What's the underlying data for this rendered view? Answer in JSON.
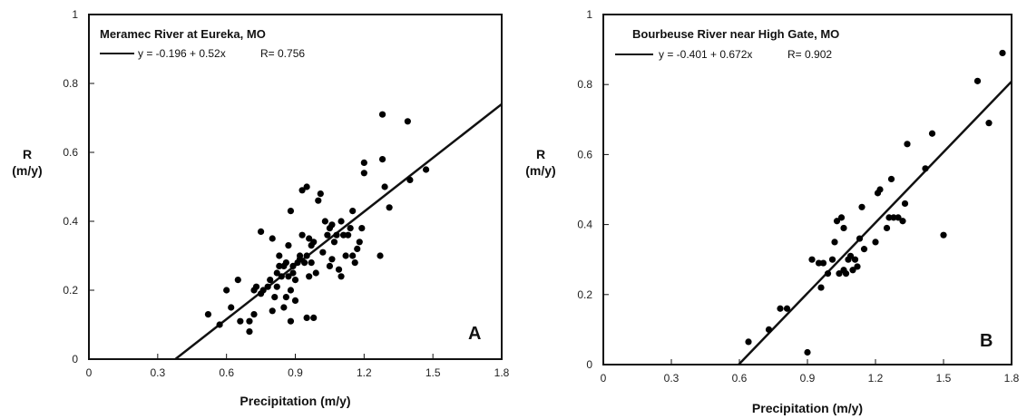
{
  "chart_data": [
    {
      "type": "scatter",
      "title": "Meramec River at Eureka, MO",
      "equation": "y = -0.196 + 0.52x",
      "r_text": "R= 0.756",
      "panel_letter": "A",
      "xlabel": "Precipitation (m/y)",
      "ylabel_line1": "R",
      "ylabel_line2": "(m/y)",
      "xlim": [
        0,
        1.8
      ],
      "ylim": [
        0,
        1
      ],
      "xticks": [
        "0",
        "0.3",
        "0.6",
        "0.9",
        "1.2",
        "1.5",
        "1.8"
      ],
      "yticks": [
        "0",
        "0.2",
        "0.4",
        "0.6",
        "0.8",
        "1"
      ],
      "fit": {
        "intercept": -0.196,
        "slope": 0.52
      },
      "points": [
        [
          0.52,
          0.13
        ],
        [
          0.57,
          0.1
        ],
        [
          0.6,
          0.2
        ],
        [
          0.62,
          0.15
        ],
        [
          0.65,
          0.23
        ],
        [
          0.66,
          0.11
        ],
        [
          0.7,
          0.08
        ],
        [
          0.7,
          0.11
        ],
        [
          0.72,
          0.13
        ],
        [
          0.72,
          0.2
        ],
        [
          0.73,
          0.21
        ],
        [
          0.75,
          0.19
        ],
        [
          0.75,
          0.37
        ],
        [
          0.76,
          0.2
        ],
        [
          0.78,
          0.21
        ],
        [
          0.79,
          0.23
        ],
        [
          0.8,
          0.35
        ],
        [
          0.8,
          0.14
        ],
        [
          0.81,
          0.18
        ],
        [
          0.82,
          0.25
        ],
        [
          0.82,
          0.21
        ],
        [
          0.83,
          0.27
        ],
        [
          0.83,
          0.3
        ],
        [
          0.84,
          0.24
        ],
        [
          0.85,
          0.15
        ],
        [
          0.85,
          0.27
        ],
        [
          0.86,
          0.28
        ],
        [
          0.86,
          0.18
        ],
        [
          0.87,
          0.33
        ],
        [
          0.87,
          0.24
        ],
        [
          0.88,
          0.11
        ],
        [
          0.88,
          0.2
        ],
        [
          0.88,
          0.43
        ],
        [
          0.89,
          0.27
        ],
        [
          0.89,
          0.25
        ],
        [
          0.9,
          0.17
        ],
        [
          0.9,
          0.23
        ],
        [
          0.91,
          0.28
        ],
        [
          0.92,
          0.29
        ],
        [
          0.92,
          0.3
        ],
        [
          0.93,
          0.49
        ],
        [
          0.93,
          0.36
        ],
        [
          0.94,
          0.28
        ],
        [
          0.95,
          0.12
        ],
        [
          0.95,
          0.3
        ],
        [
          0.95,
          0.5
        ],
        [
          0.96,
          0.35
        ],
        [
          0.96,
          0.24
        ],
        [
          0.97,
          0.28
        ],
        [
          0.97,
          0.33
        ],
        [
          0.98,
          0.12
        ],
        [
          0.98,
          0.34
        ],
        [
          0.99,
          0.25
        ],
        [
          1.0,
          0.46
        ],
        [
          1.01,
          0.48
        ],
        [
          1.02,
          0.31
        ],
        [
          1.03,
          0.4
        ],
        [
          1.04,
          0.36
        ],
        [
          1.05,
          0.27
        ],
        [
          1.05,
          0.38
        ],
        [
          1.06,
          0.39
        ],
        [
          1.06,
          0.29
        ],
        [
          1.07,
          0.34
        ],
        [
          1.08,
          0.36
        ],
        [
          1.09,
          0.26
        ],
        [
          1.1,
          0.24
        ],
        [
          1.1,
          0.4
        ],
        [
          1.11,
          0.36
        ],
        [
          1.12,
          0.3
        ],
        [
          1.13,
          0.36
        ],
        [
          1.14,
          0.38
        ],
        [
          1.15,
          0.3
        ],
        [
          1.15,
          0.43
        ],
        [
          1.16,
          0.28
        ],
        [
          1.17,
          0.32
        ],
        [
          1.18,
          0.34
        ],
        [
          1.19,
          0.38
        ],
        [
          1.2,
          0.57
        ],
        [
          1.2,
          0.54
        ],
        [
          1.27,
          0.3
        ],
        [
          1.28,
          0.71
        ],
        [
          1.28,
          0.58
        ],
        [
          1.29,
          0.5
        ],
        [
          1.31,
          0.44
        ],
        [
          1.39,
          0.69
        ],
        [
          1.4,
          0.52
        ],
        [
          1.47,
          0.55
        ]
      ]
    },
    {
      "type": "scatter",
      "title": "Bourbeuse River near High Gate, MO",
      "equation": "y = -0.401 + 0.672x",
      "r_text": "R= 0.902",
      "panel_letter": "B",
      "xlabel": "Precipitation (m/y)",
      "ylabel_line1": "R",
      "ylabel_line2": "(m/y)",
      "xlim": [
        0,
        1.8
      ],
      "ylim": [
        0,
        1
      ],
      "xticks": [
        "0",
        "0.3",
        "0.6",
        "0.9",
        "1.2",
        "1.5",
        "1.8"
      ],
      "yticks": [
        "0",
        "0.2",
        "0.4",
        "0.6",
        "0.8",
        "1"
      ],
      "fit": {
        "intercept": -0.401,
        "slope": 0.672
      },
      "points": [
        [
          0.64,
          0.065
        ],
        [
          0.73,
          0.1
        ],
        [
          0.78,
          0.16
        ],
        [
          0.81,
          0.16
        ],
        [
          0.9,
          0.035
        ],
        [
          0.92,
          0.3
        ],
        [
          0.95,
          0.29
        ],
        [
          0.96,
          0.22
        ],
        [
          0.97,
          0.29
        ],
        [
          0.99,
          0.26
        ],
        [
          1.01,
          0.3
        ],
        [
          1.02,
          0.35
        ],
        [
          1.03,
          0.41
        ],
        [
          1.04,
          0.26
        ],
        [
          1.05,
          0.42
        ],
        [
          1.06,
          0.27
        ],
        [
          1.06,
          0.39
        ],
        [
          1.07,
          0.26
        ],
        [
          1.08,
          0.3
        ],
        [
          1.09,
          0.31
        ],
        [
          1.1,
          0.27
        ],
        [
          1.11,
          0.3
        ],
        [
          1.12,
          0.28
        ],
        [
          1.13,
          0.36
        ],
        [
          1.14,
          0.45
        ],
        [
          1.15,
          0.33
        ],
        [
          1.2,
          0.35
        ],
        [
          1.21,
          0.49
        ],
        [
          1.22,
          0.5
        ],
        [
          1.25,
          0.39
        ],
        [
          1.26,
          0.42
        ],
        [
          1.27,
          0.53
        ],
        [
          1.28,
          0.42
        ],
        [
          1.3,
          0.42
        ],
        [
          1.32,
          0.41
        ],
        [
          1.33,
          0.46
        ],
        [
          1.34,
          0.63
        ],
        [
          1.42,
          0.56
        ],
        [
          1.45,
          0.66
        ],
        [
          1.5,
          0.37
        ],
        [
          1.65,
          0.81
        ],
        [
          1.7,
          0.69
        ],
        [
          1.76,
          0.89
        ]
      ]
    }
  ]
}
